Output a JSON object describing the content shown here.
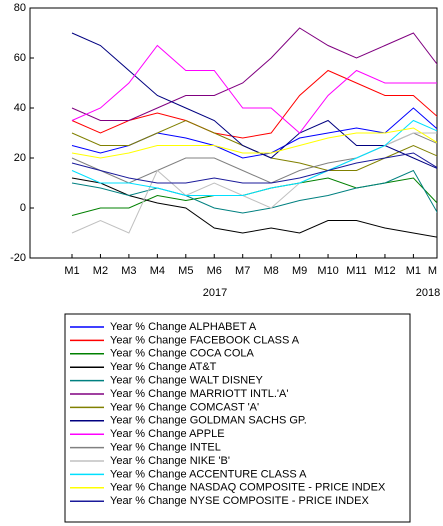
{
  "chart_data": {
    "type": "line",
    "categories": [
      "M1",
      "M2",
      "M3",
      "M4",
      "M5",
      "M6",
      "M7",
      "M8",
      "M9",
      "M10",
      "M11",
      "M12",
      "M1",
      "M"
    ],
    "x_group_labels": [
      "2017",
      "2018"
    ],
    "ylim": [
      -20,
      80
    ],
    "yticks": [
      -20,
      0,
      20,
      40,
      60,
      80
    ],
    "series": [
      {
        "name": "Year % Change ALPHABET A",
        "color": "#0000ff",
        "values": [
          25,
          22,
          25,
          30,
          28,
          25,
          20,
          22,
          28,
          30,
          32,
          30,
          40,
          30
        ]
      },
      {
        "name": "Year % Change FACEBOOK CLASS A",
        "color": "#ff0000",
        "values": [
          35,
          30,
          35,
          38,
          35,
          30,
          28,
          30,
          45,
          55,
          50,
          45,
          45,
          35
        ]
      },
      {
        "name": "Year % Change COCA COLA",
        "color": "#008000",
        "values": [
          -3,
          0,
          0,
          5,
          3,
          5,
          5,
          8,
          10,
          12,
          8,
          10,
          12,
          0
        ]
      },
      {
        "name": "Year % Change AT&T",
        "color": "#000000",
        "values": [
          12,
          10,
          5,
          2,
          0,
          -8,
          -10,
          -8,
          -10,
          -5,
          -5,
          -8,
          -10,
          -12
        ]
      },
      {
        "name": "Year % Change WALT DISNEY",
        "color": "#008080",
        "values": [
          10,
          8,
          5,
          8,
          5,
          0,
          -2,
          0,
          3,
          5,
          8,
          10,
          15,
          -5
        ]
      },
      {
        "name": "Year % Change MARRIOTT INTL.'A'",
        "color": "#800080",
        "values": [
          40,
          35,
          35,
          40,
          45,
          45,
          50,
          60,
          72,
          65,
          60,
          65,
          70,
          55
        ]
      },
      {
        "name": "Year % Change COMCAST 'A'",
        "color": "#808000",
        "values": [
          30,
          25,
          25,
          30,
          35,
          30,
          25,
          20,
          18,
          15,
          15,
          20,
          25,
          20
        ]
      },
      {
        "name": "Year % Change GOLDMAN SACHS GP.",
        "color": "#000080",
        "values": [
          70,
          65,
          55,
          45,
          40,
          35,
          25,
          20,
          30,
          35,
          25,
          25,
          20,
          15
        ]
      },
      {
        "name": "Year % Change APPLE",
        "color": "#ff00ff",
        "values": [
          35,
          40,
          50,
          65,
          55,
          55,
          40,
          40,
          30,
          45,
          55,
          50,
          50,
          50
        ]
      },
      {
        "name": "Year % Change INTEL",
        "color": "#808080",
        "values": [
          20,
          15,
          10,
          15,
          20,
          20,
          15,
          10,
          15,
          18,
          20,
          25,
          30,
          25
        ]
      },
      {
        "name": "Year % Change NIKE 'B'",
        "color": "#c0c0c0",
        "values": [
          -10,
          -5,
          -10,
          15,
          5,
          10,
          5,
          0,
          10,
          15,
          20,
          25,
          30,
          30
        ]
      },
      {
        "name": "Year % Change ACCENTURE CLASS A",
        "color": "#00e0ff",
        "values": [
          15,
          10,
          10,
          8,
          5,
          5,
          5,
          8,
          10,
          15,
          20,
          25,
          35,
          30
        ]
      },
      {
        "name": "Year % Change NASDAQ COMPOSITE - PRICE INDEX",
        "color": "#ffff00",
        "values": [
          22,
          20,
          22,
          25,
          25,
          25,
          22,
          22,
          25,
          28,
          30,
          30,
          32,
          25
        ]
      },
      {
        "name": "Year % Change NYSE COMPOSITE - PRICE INDEX",
        "color": "#1a1a9a",
        "values": [
          18,
          15,
          12,
          10,
          10,
          12,
          10,
          10,
          12,
          15,
          18,
          20,
          22,
          15
        ]
      }
    ]
  }
}
